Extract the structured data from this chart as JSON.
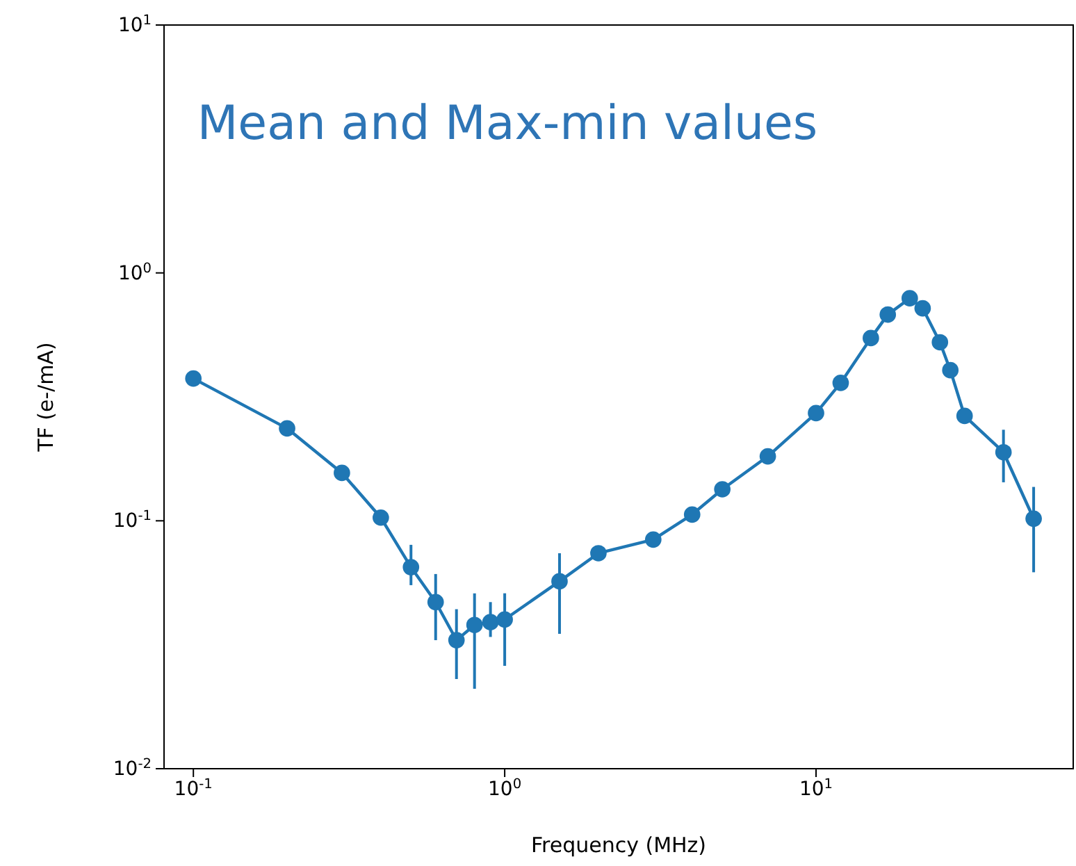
{
  "chart_data": {
    "type": "line",
    "xlabel": "Frequency (MHz)",
    "ylabel": "TF (e-/mA)",
    "log": "xy",
    "marker": "circle",
    "grid": false,
    "annotations": [
      "Mean and Max-min values"
    ],
    "xlim": [
      0.0805,
      67
    ],
    "xticks": [
      {
        "value": 0.1,
        "label": "10$^{-1}$"
      },
      {
        "value": 1,
        "label": "10$^{0}$"
      },
      {
        "value": 10,
        "label": "10$^{1}$"
      }
    ],
    "ylim": [
      0.01,
      10
    ],
    "yticks": [
      {
        "value": 0.01,
        "label": "10$^{-2}$"
      },
      {
        "value": 0.1,
        "label": "10$^{-1}$"
      },
      {
        "value": 1,
        "label": "10$^{0}$"
      },
      {
        "value": 10,
        "label": "10$^{1}$"
      }
    ],
    "x": [
      0.1,
      0.2,
      0.3,
      0.4,
      0.5,
      0.6,
      0.7,
      0.8,
      0.9,
      1,
      1.5,
      2,
      3,
      4,
      5,
      7,
      10,
      12,
      15,
      17,
      20,
      22,
      25,
      27,
      30,
      40,
      50
    ],
    "series": [
      {
        "color": "#1f77b4",
        "values": [
          0.375,
          0.236,
          0.156,
          0.103,
          0.065,
          0.047,
          0.033,
          0.038,
          0.039,
          0.04,
          0.057,
          0.074,
          0.084,
          0.106,
          0.134,
          0.182,
          0.272,
          0.36,
          0.546,
          0.679,
          0.79,
          0.72,
          0.525,
          0.405,
          0.265,
          0.189,
          0.102
        ],
        "errors": [
          null,
          null,
          null,
          null,
          [
            0.055,
            0.08
          ],
          [
            0.033,
            0.061
          ],
          [
            0.023,
            0.044
          ],
          [
            0.021,
            0.051
          ],
          [
            0.034,
            0.047
          ],
          [
            0.026,
            0.051
          ],
          [
            0.035,
            0.074
          ],
          null,
          null,
          null,
          null,
          null,
          null,
          null,
          null,
          null,
          null,
          null,
          null,
          null,
          null,
          [
            0.143,
            0.233
          ],
          [
            0.062,
            0.137
          ]
        ]
      }
    ]
  }
}
